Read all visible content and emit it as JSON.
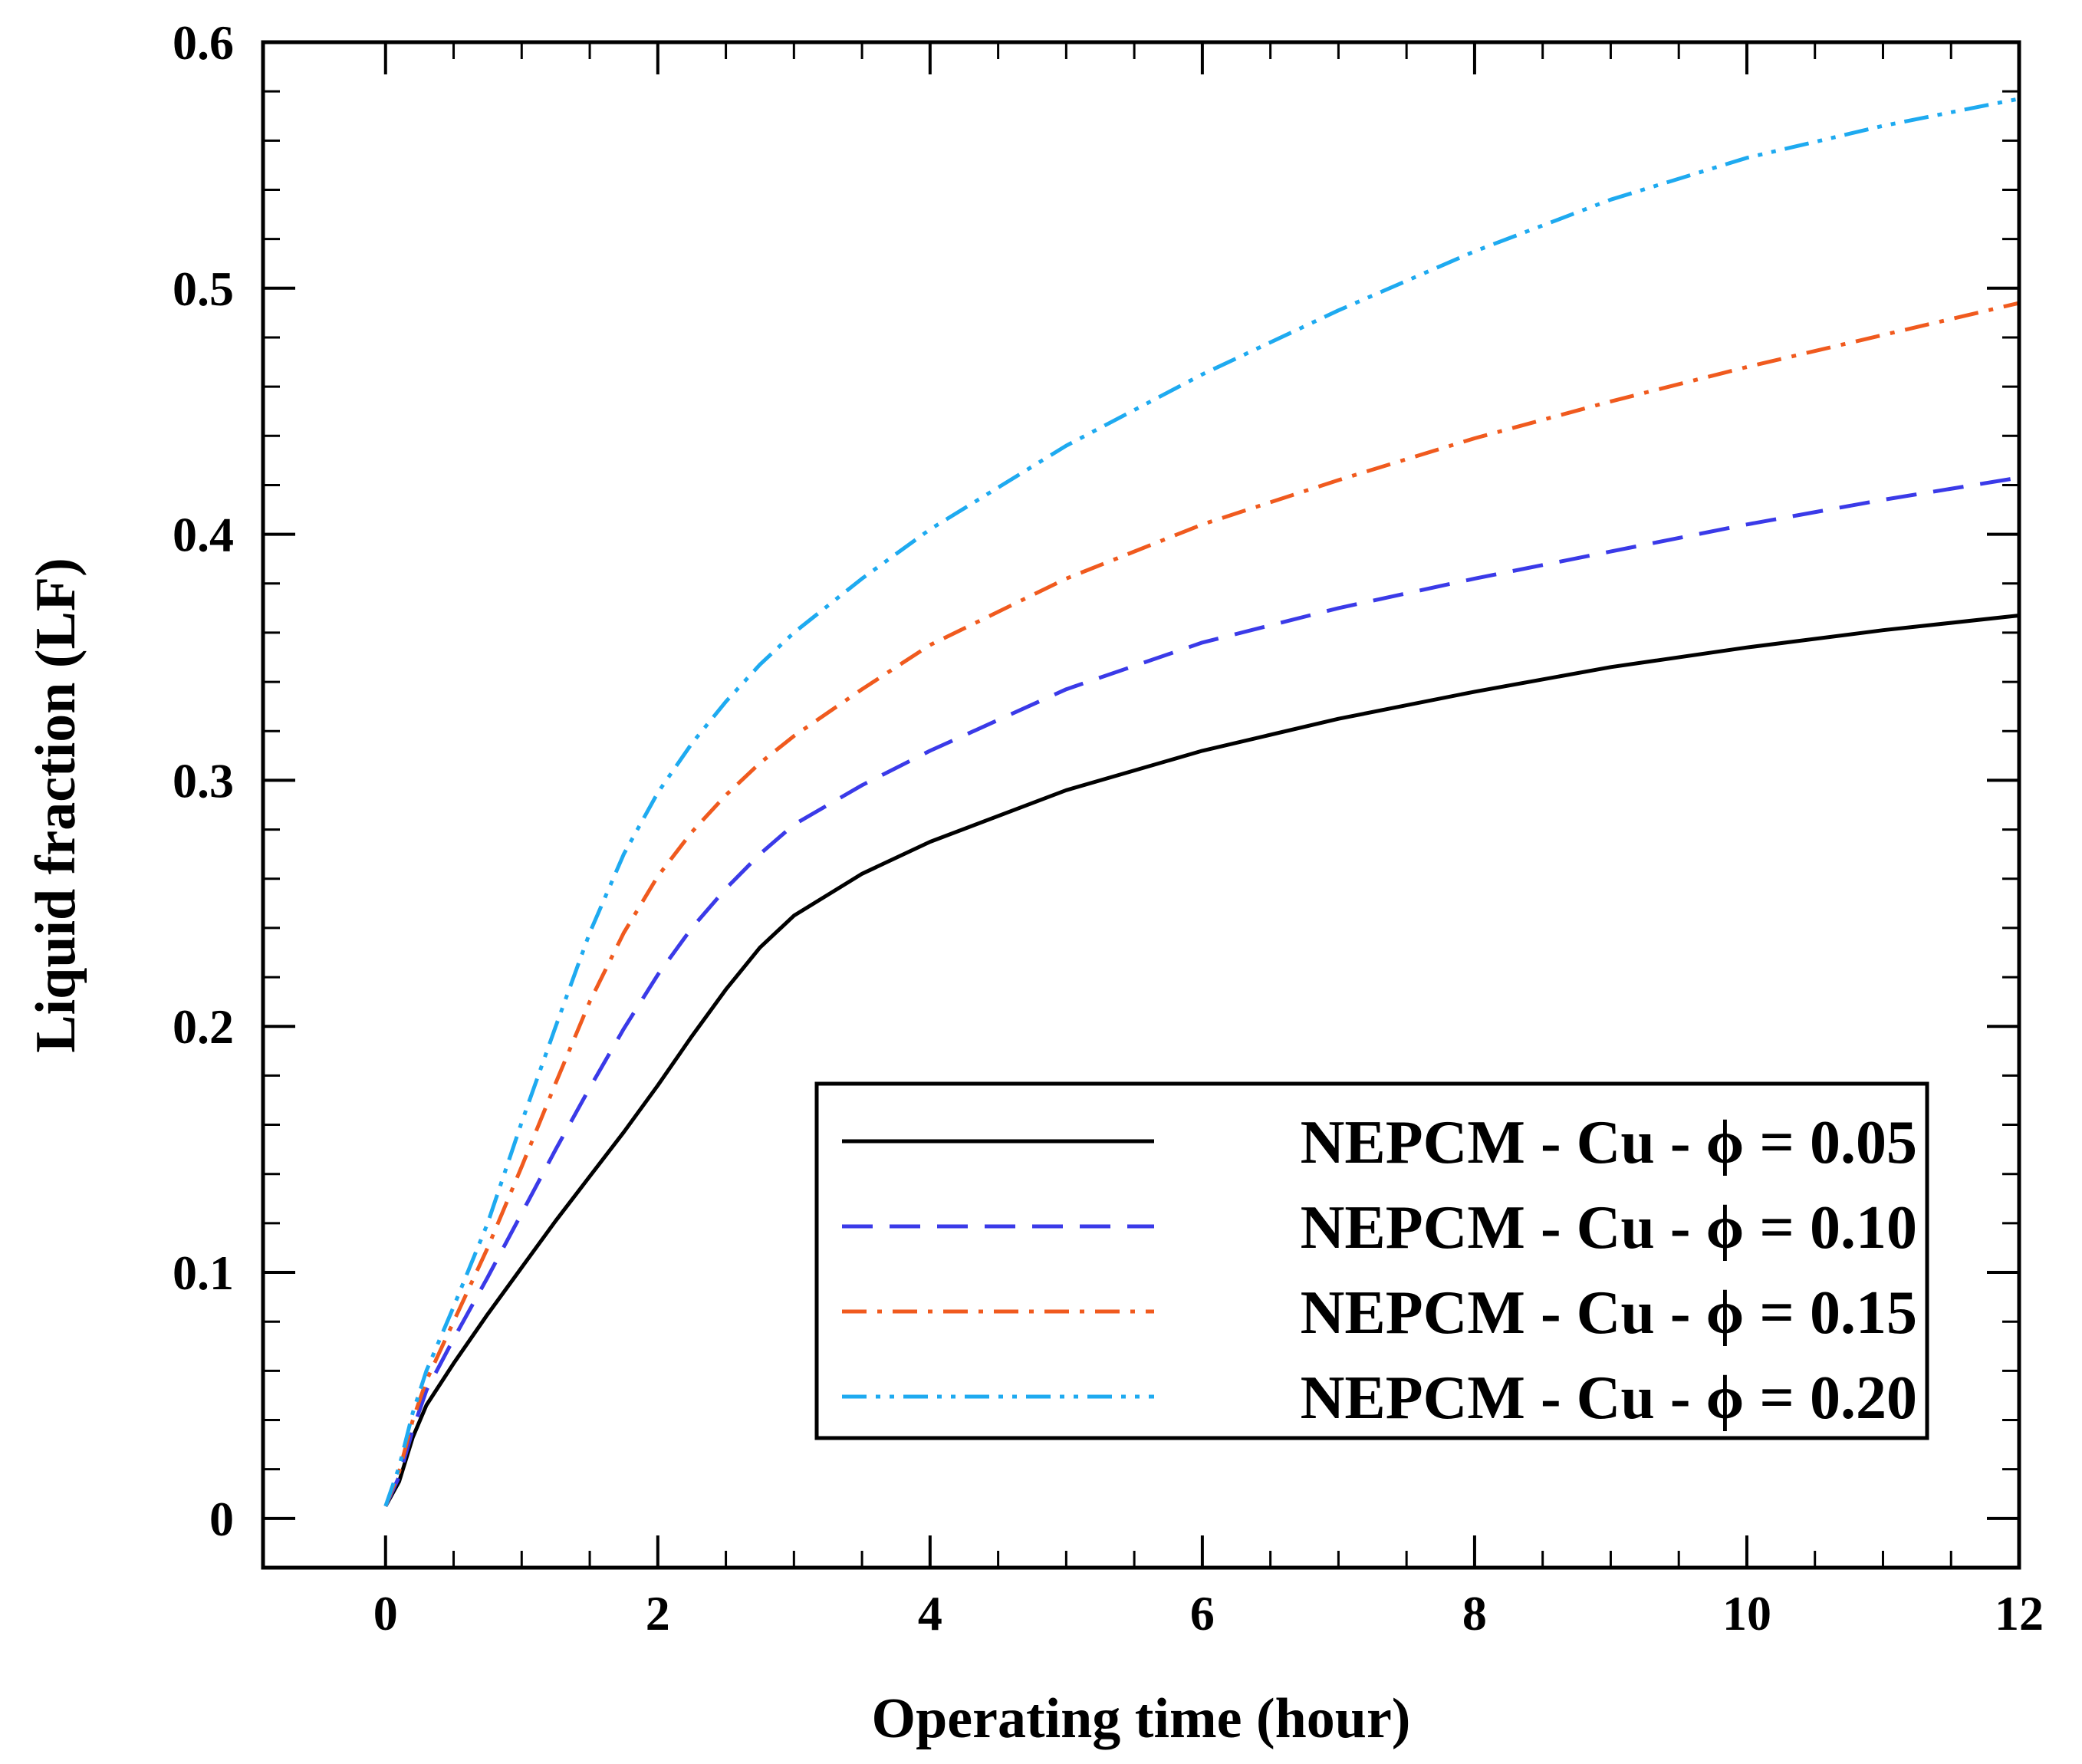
{
  "chart_data": {
    "type": "line",
    "xlabel": "Operating time (hour)",
    "ylabel": "Liquid fraction (LF)",
    "xlim": [
      -0.9,
      12
    ],
    "ylim": [
      -0.02,
      0.6
    ],
    "xticks": [
      0,
      2,
      4,
      6,
      8,
      10,
      12
    ],
    "xtick_labels": [
      "0",
      "2",
      "4",
      "6",
      "8",
      "10",
      "12"
    ],
    "yticks": [
      0,
      0.1,
      0.2,
      0.3,
      0.4,
      0.5,
      0.6
    ],
    "ytick_labels": [
      "0",
      "0.1",
      "0.2",
      "0.3",
      "0.4",
      "0.5",
      "0.6"
    ],
    "x_minor_step": 0.5,
    "y_minor_step": 0.02,
    "grid": false,
    "legend_position": "bottom-right",
    "series": [
      {
        "name": "NEPCM - Cu - ϕ = 0.05",
        "color": "#000000",
        "dash": "solid",
        "x": [
          0,
          0.1,
          0.2,
          0.3,
          0.5,
          0.75,
          1.0,
          1.25,
          1.5,
          1.75,
          2.0,
          2.25,
          2.5,
          2.75,
          3.0,
          3.5,
          4.0,
          5.0,
          6.0,
          7.0,
          8.0,
          9.0,
          10.0,
          11.0,
          12.0
        ],
        "y": [
          0.005,
          0.015,
          0.033,
          0.046,
          0.063,
          0.083,
          0.102,
          0.121,
          0.139,
          0.157,
          0.176,
          0.196,
          0.215,
          0.232,
          0.245,
          0.262,
          0.275,
          0.296,
          0.312,
          0.325,
          0.336,
          0.346,
          0.354,
          0.361,
          0.367
        ]
      },
      {
        "name": "NEPCM - Cu - ϕ = 0.10",
        "color": "#3a3ae8",
        "dash": "dashed",
        "x": [
          0,
          0.1,
          0.2,
          0.3,
          0.5,
          0.75,
          1.0,
          1.25,
          1.5,
          1.75,
          2.0,
          2.25,
          2.5,
          2.75,
          3.0,
          3.5,
          4.0,
          5.0,
          6.0,
          7.0,
          8.0,
          9.0,
          10.0,
          11.0,
          12.0
        ],
        "y": [
          0.005,
          0.017,
          0.036,
          0.052,
          0.073,
          0.098,
          0.124,
          0.15,
          0.175,
          0.199,
          0.221,
          0.24,
          0.256,
          0.27,
          0.282,
          0.298,
          0.312,
          0.337,
          0.356,
          0.37,
          0.382,
          0.393,
          0.404,
          0.414,
          0.423
        ]
      },
      {
        "name": "NEPCM - Cu - ϕ = 0.15",
        "color": "#f05a1e",
        "dash": "dashdot",
        "x": [
          0,
          0.1,
          0.2,
          0.3,
          0.5,
          0.75,
          1.0,
          1.25,
          1.5,
          1.75,
          2.0,
          2.25,
          2.5,
          2.75,
          3.0,
          3.5,
          4.0,
          5.0,
          6.0,
          7.0,
          8.0,
          9.0,
          10.0,
          11.0,
          12.0
        ],
        "y": [
          0.005,
          0.019,
          0.04,
          0.056,
          0.08,
          0.11,
          0.143,
          0.177,
          0.21,
          0.238,
          0.261,
          0.279,
          0.294,
          0.307,
          0.318,
          0.337,
          0.355,
          0.382,
          0.404,
          0.422,
          0.439,
          0.454,
          0.468,
          0.481,
          0.494
        ]
      },
      {
        "name": "NEPCM - Cu - ϕ = 0.20",
        "color": "#1eaaf0",
        "dash": "dashdotdot",
        "x": [
          0,
          0.1,
          0.2,
          0.3,
          0.5,
          0.75,
          1.0,
          1.25,
          1.5,
          1.75,
          2.0,
          2.25,
          2.5,
          2.75,
          3.0,
          3.5,
          4.0,
          5.0,
          6.0,
          7.0,
          8.0,
          9.0,
          10.0,
          11.0,
          12.0
        ],
        "y": [
          0.005,
          0.021,
          0.043,
          0.06,
          0.086,
          0.12,
          0.161,
          0.2,
          0.238,
          0.27,
          0.295,
          0.315,
          0.332,
          0.347,
          0.36,
          0.382,
          0.402,
          0.436,
          0.465,
          0.491,
          0.515,
          0.536,
          0.553,
          0.566,
          0.577
        ]
      }
    ]
  }
}
